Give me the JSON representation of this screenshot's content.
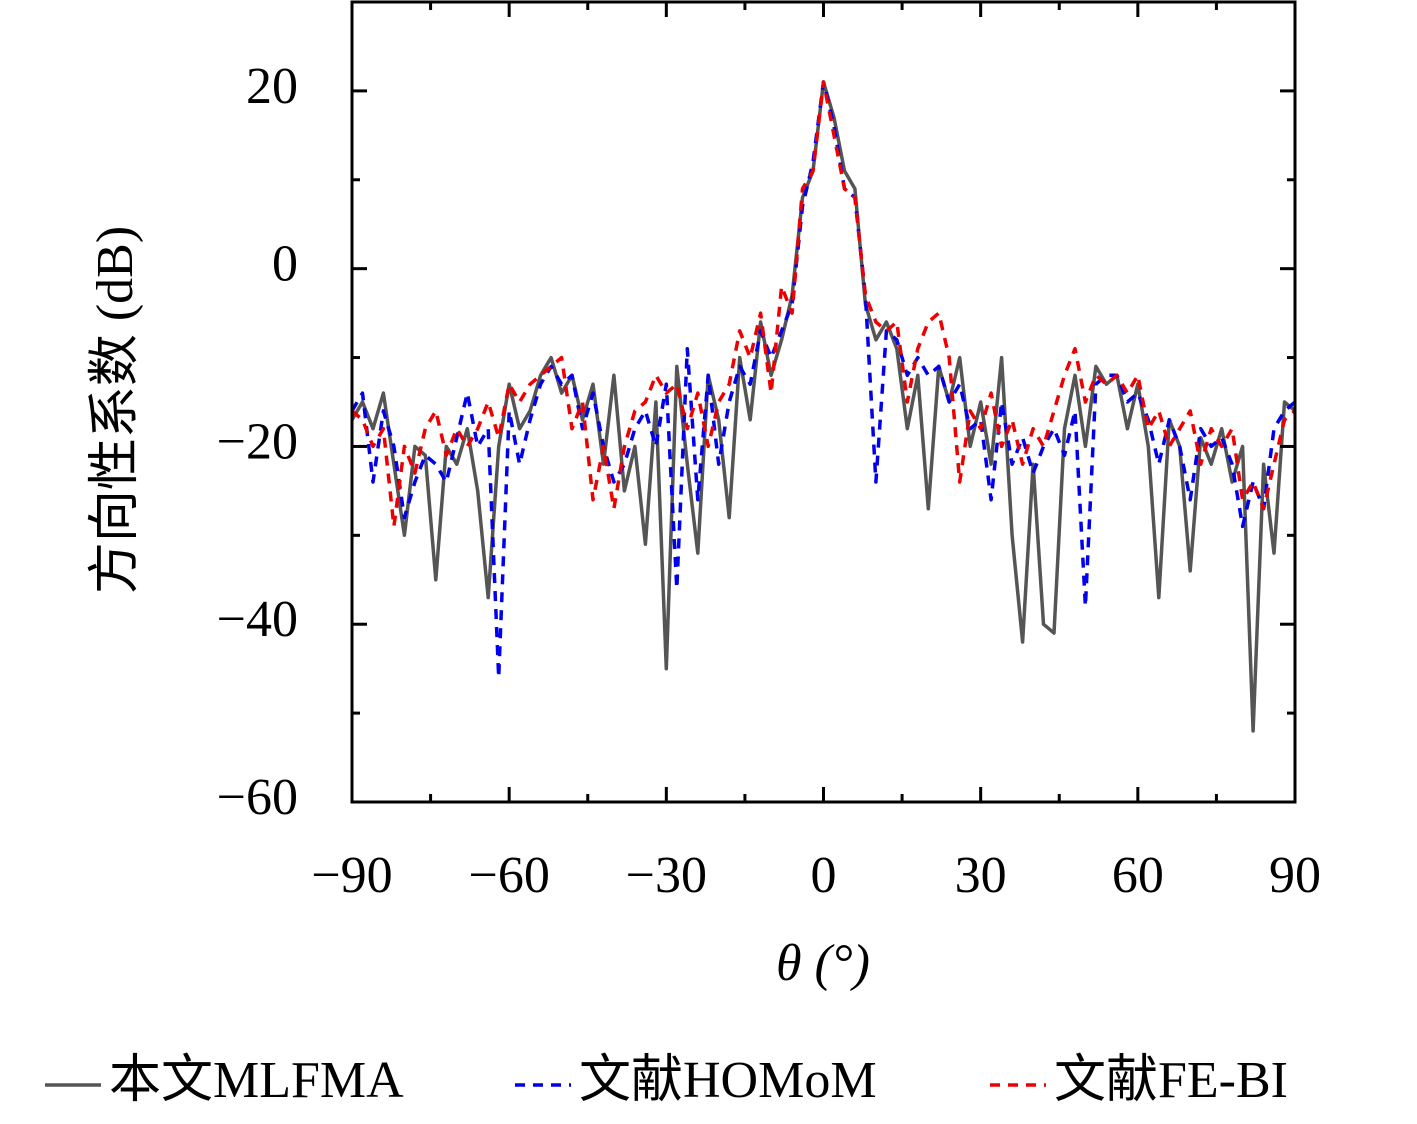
{
  "chart_data": {
    "type": "line",
    "xlabel": "θ (°)",
    "ylabel": "方向性系数 (dB)",
    "xlim": [
      -90,
      90
    ],
    "ylim": [
      -60,
      30
    ],
    "xticks": [
      {
        "value": -90,
        "label": "−90"
      },
      {
        "value": -60,
        "label": "−60"
      },
      {
        "value": -30,
        "label": "−30"
      },
      0,
      30,
      60,
      90
    ],
    "xminorticks": [
      -75,
      -45,
      -15,
      15,
      45,
      75
    ],
    "yticks": [
      {
        "value": -60,
        "label": "−60"
      },
      {
        "value": -40,
        "label": "−40"
      },
      {
        "value": -20,
        "label": "−20"
      },
      0,
      20
    ],
    "yminorticks": [
      -50,
      -30,
      -10,
      10
    ],
    "x": [
      -90,
      -88,
      -86,
      -84,
      -82,
      -80,
      -78,
      -76,
      -74,
      -72,
      -70,
      -68,
      -66,
      -64,
      -62,
      -60,
      -58,
      -56,
      -54,
      -52,
      -50,
      -48,
      -46,
      -44,
      -42,
      -40,
      -38,
      -36,
      -34,
      -32,
      -30,
      -28,
      -26,
      -24,
      -22,
      -20,
      -18,
      -16,
      -14,
      -12,
      -10,
      -8,
      -6,
      -4,
      -2,
      0,
      2,
      4,
      6,
      8,
      10,
      12,
      14,
      16,
      18,
      20,
      22,
      24,
      26,
      28,
      30,
      32,
      34,
      36,
      38,
      40,
      42,
      44,
      46,
      48,
      50,
      52,
      54,
      56,
      58,
      60,
      62,
      64,
      66,
      68,
      70,
      72,
      74,
      76,
      78,
      80,
      82,
      84,
      86,
      88,
      90
    ],
    "series": [
      {
        "name": "本文MLFMA",
        "color": "#555555",
        "dash": "solid",
        "values": [
          -17,
          -15,
          -18,
          -14,
          -22,
          -30,
          -20,
          -21,
          -35,
          -20,
          -22,
          -18,
          -25,
          -37,
          -20,
          -13,
          -18,
          -16,
          -12,
          -10,
          -14,
          -12,
          -17,
          -13,
          -22,
          -12,
          -25,
          -20,
          -31,
          -15,
          -45,
          -11,
          -22,
          -32,
          -12,
          -17,
          -28,
          -10,
          -17,
          -6,
          -12,
          -8,
          -3,
          8,
          11,
          21,
          17,
          11,
          9,
          -4,
          -8,
          -6,
          -9,
          -18,
          -12,
          -27,
          -11,
          -15,
          -10,
          -20,
          -15,
          -22,
          -10,
          -30,
          -42,
          -22,
          -40,
          -41,
          -18,
          -12,
          -20,
          -11,
          -13,
          -12,
          -18,
          -13,
          -20,
          -37,
          -17,
          -20,
          -34,
          -19,
          -22,
          -18,
          -24,
          -20,
          -52,
          -22,
          -32,
          -15,
          -16
        ]
      },
      {
        "name": "文献HOMoM",
        "color": "#0000ee",
        "dash": "dashed",
        "values": [
          -16,
          -14,
          -24,
          -16,
          -20,
          -28,
          -24,
          -21,
          -22,
          -24,
          -19,
          -14,
          -20,
          -18,
          -46,
          -16,
          -22,
          -17,
          -13,
          -11,
          -13,
          -12,
          -18,
          -14,
          -20,
          -24,
          -22,
          -18,
          -16,
          -20,
          -13,
          -36,
          -9,
          -26,
          -12,
          -22,
          -15,
          -11,
          -13,
          -7,
          -10,
          -7,
          -4,
          7,
          12,
          21,
          16,
          9,
          8,
          -3,
          -24,
          -7,
          -8,
          -12,
          -10,
          -12,
          -11,
          -15,
          -13,
          -18,
          -17,
          -26,
          -15,
          -22,
          -19,
          -23,
          -20,
          -18,
          -21,
          -16,
          -38,
          -13,
          -12,
          -12,
          -15,
          -14,
          -17,
          -22,
          -17,
          -20,
          -26,
          -18,
          -20,
          -19,
          -22,
          -29,
          -24,
          -27,
          -18,
          -16,
          -15
        ]
      },
      {
        "name": "文献FE-BI",
        "color": "#ee0000",
        "dash": "dashed",
        "values": [
          -16,
          -17,
          -20,
          -18,
          -29,
          -20,
          -23,
          -18,
          -16,
          -21,
          -18,
          -20,
          -18,
          -15,
          -19,
          -13,
          -15,
          -13,
          -12,
          -11,
          -10,
          -18,
          -15,
          -26,
          -20,
          -27,
          -20,
          -16,
          -15,
          -12,
          -14,
          -13,
          -18,
          -14,
          -20,
          -15,
          -13,
          -7,
          -10,
          -5,
          -14,
          -2,
          -5,
          9,
          11,
          21,
          15,
          9,
          8,
          -3,
          -6,
          -7,
          -6,
          -15,
          -9,
          -6,
          -5,
          -10,
          -24,
          -16,
          -18,
          -14,
          -20,
          -17,
          -22,
          -18,
          -20,
          -16,
          -12,
          -9,
          -15,
          -12,
          -13,
          -12,
          -14,
          -12,
          -18,
          -16,
          -20,
          -18,
          -16,
          -22,
          -18,
          -20,
          -18,
          -26,
          -24,
          -27,
          -22,
          -17,
          -16
        ]
      }
    ]
  }
}
